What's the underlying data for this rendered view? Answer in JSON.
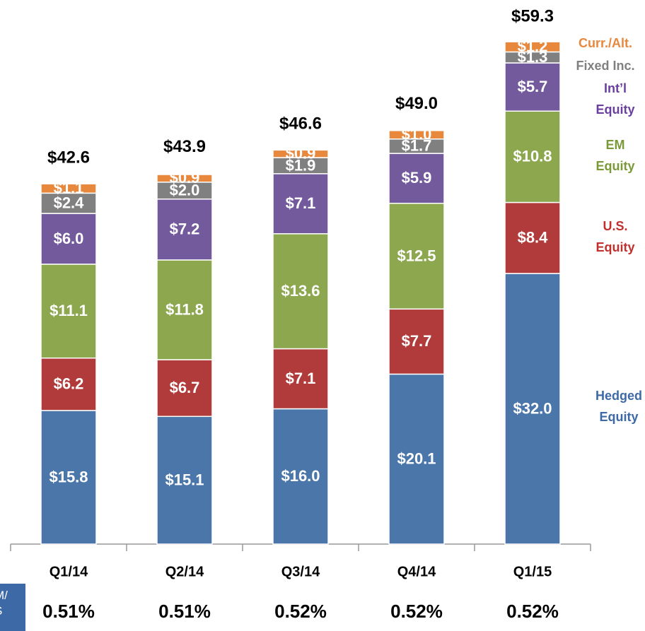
{
  "chart_data": {
    "type": "stacked_bar",
    "categories": [
      "Q1/14",
      "Q2/14",
      "Q3/14",
      "Q4/14",
      "Q1/15"
    ],
    "series": [
      {
        "name": "Hedged Equity",
        "color": "#4a76aa",
        "label_color": "#3d6aa6",
        "values": [
          15.8,
          15.1,
          16.0,
          20.1,
          32.0
        ],
        "value_labels": [
          "$15.8",
          "$15.1",
          "$16.0",
          "$20.1",
          "$32.0"
        ]
      },
      {
        "name": "U.S. Equity",
        "color": "#b13a3a",
        "label_color": "#c0302e",
        "values": [
          6.2,
          6.7,
          7.1,
          7.7,
          8.4
        ],
        "value_labels": [
          "$6.2",
          "$6.7",
          "$7.1",
          "$7.7",
          "$8.4"
        ]
      },
      {
        "name": "EM Equity",
        "color": "#8ca74e",
        "label_color": "#7a9a38",
        "values": [
          11.1,
          11.8,
          13.6,
          12.5,
          10.8
        ],
        "value_labels": [
          "$11.1",
          "$11.8",
          "$13.6",
          "$12.5",
          "$10.8"
        ]
      },
      {
        "name": "Int’l Equity",
        "color": "#735a9c",
        "label_color": "#6a3fa0",
        "values": [
          6.0,
          7.2,
          7.1,
          5.9,
          5.7
        ],
        "value_labels": [
          "$6.0",
          "$7.2",
          "$7.1",
          "$5.9",
          "$5.7"
        ]
      },
      {
        "name": "Fixed Inc.",
        "color": "#808080",
        "label_color": "#808080",
        "values": [
          2.4,
          2.0,
          1.9,
          1.7,
          1.3
        ],
        "value_labels": [
          "$2.4",
          "$2.0",
          "$1.9",
          "$1.7",
          "$1.3"
        ]
      },
      {
        "name": "Curr./Alt.",
        "color": "#e8883c",
        "label_color": "#e8883c",
        "values": [
          1.1,
          0.9,
          0.9,
          1.0,
          1.2
        ],
        "value_labels": [
          "$1.1",
          "$0.9",
          "$0.9",
          "$1.0",
          "$1.2"
        ]
      }
    ],
    "totals": [
      42.6,
      43.9,
      46.6,
      49.0,
      59.3
    ],
    "total_labels": [
      "$42.6",
      "$43.9",
      "$46.6",
      "$49.0",
      "$59.3"
    ],
    "fee_box": "M/ S",
    "fees": [
      0.51,
      0.51,
      0.52,
      0.52,
      0.52
    ],
    "fee_labels": [
      "0.51%",
      "0.51%",
      "0.52%",
      "0.52%",
      "0.52%"
    ],
    "ylim": [
      0,
      62
    ]
  }
}
